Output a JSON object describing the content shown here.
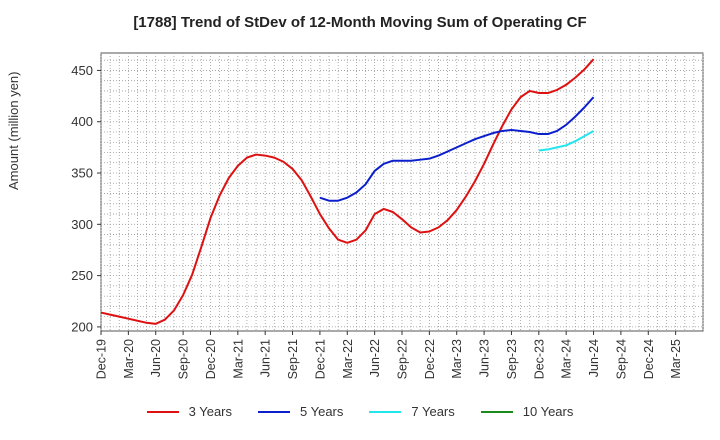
{
  "chart_data": {
    "type": "line",
    "title": "[1788]  Trend of StDev of 12-Month Moving Sum of Operating CF",
    "xlabel": "",
    "ylabel": "Amount (million yen)",
    "ylim": [
      196,
      467
    ],
    "yticks": [
      200,
      250,
      300,
      350,
      400,
      450
    ],
    "categories": [
      "Dec-19",
      "Mar-20",
      "Jun-20",
      "Sep-20",
      "Dec-20",
      "Mar-21",
      "Jun-21",
      "Sep-21",
      "Dec-21",
      "Mar-22",
      "Jun-22",
      "Sep-22",
      "Dec-22",
      "Mar-23",
      "Jun-23",
      "Sep-23",
      "Dec-23",
      "Mar-24",
      "Jun-24",
      "Sep-24",
      "Dec-24",
      "Mar-25"
    ],
    "grid": true,
    "legend_position": "bottom",
    "series": [
      {
        "name": "3 Years",
        "color": "#dd1111",
        "points": [
          [
            "Dec-19",
            214
          ],
          [
            "Jan-20",
            212
          ],
          [
            "Feb-20",
            210
          ],
          [
            "Mar-20",
            208
          ],
          [
            "Apr-20",
            206
          ],
          [
            "May-20",
            204
          ],
          [
            "Jun-20",
            203
          ],
          [
            "Jul-20",
            207
          ],
          [
            "Aug-20",
            216
          ],
          [
            "Sep-20",
            231
          ],
          [
            "Oct-20",
            251
          ],
          [
            "Nov-20",
            278
          ],
          [
            "Dec-20",
            306
          ],
          [
            "Jan-21",
            328
          ],
          [
            "Feb-21",
            345
          ],
          [
            "Mar-21",
            357
          ],
          [
            "Apr-21",
            365
          ],
          [
            "May-21",
            368
          ],
          [
            "Jun-21",
            367
          ],
          [
            "Jul-21",
            365
          ],
          [
            "Aug-21",
            361
          ],
          [
            "Sep-21",
            354
          ],
          [
            "Oct-21",
            343
          ],
          [
            "Nov-21",
            327
          ],
          [
            "Dec-21",
            310
          ],
          [
            "Jan-22",
            296
          ],
          [
            "Feb-22",
            285
          ],
          [
            "Mar-22",
            282
          ],
          [
            "Apr-22",
            285
          ],
          [
            "May-22",
            294
          ],
          [
            "Jun-22",
            310
          ],
          [
            "Jul-22",
            315
          ],
          [
            "Aug-22",
            312
          ],
          [
            "Sep-22",
            305
          ],
          [
            "Oct-22",
            297
          ],
          [
            "Nov-22",
            292
          ],
          [
            "Dec-22",
            293
          ],
          [
            "Jan-23",
            297
          ],
          [
            "Feb-23",
            304
          ],
          [
            "Mar-23",
            314
          ],
          [
            "Apr-23",
            327
          ],
          [
            "May-23",
            342
          ],
          [
            "Jun-23",
            359
          ],
          [
            "Jul-23",
            378
          ],
          [
            "Aug-23",
            396
          ],
          [
            "Sep-23",
            412
          ],
          [
            "Oct-23",
            424
          ],
          [
            "Nov-23",
            430
          ],
          [
            "Dec-23",
            428
          ],
          [
            "Jan-24",
            428
          ],
          [
            "Feb-24",
            431
          ],
          [
            "Mar-24",
            436
          ],
          [
            "Apr-24",
            443
          ],
          [
            "May-24",
            451
          ],
          [
            "Jun-24",
            461
          ]
        ]
      },
      {
        "name": "5 Years",
        "color": "#0b1fcc",
        "points": [
          [
            "Dec-21",
            326
          ],
          [
            "Jan-22",
            323
          ],
          [
            "Feb-22",
            323
          ],
          [
            "Mar-22",
            326
          ],
          [
            "Apr-22",
            331
          ],
          [
            "May-22",
            339
          ],
          [
            "Jun-22",
            352
          ],
          [
            "Jul-22",
            359
          ],
          [
            "Aug-22",
            362
          ],
          [
            "Sep-22",
            362
          ],
          [
            "Oct-22",
            362
          ],
          [
            "Nov-22",
            363
          ],
          [
            "Dec-22",
            364
          ],
          [
            "Jan-23",
            367
          ],
          [
            "Feb-23",
            371
          ],
          [
            "Mar-23",
            375
          ],
          [
            "Apr-23",
            379
          ],
          [
            "May-23",
            383
          ],
          [
            "Jun-23",
            386
          ],
          [
            "Jul-23",
            389
          ],
          [
            "Aug-23",
            391
          ],
          [
            "Sep-23",
            392
          ],
          [
            "Oct-23",
            391
          ],
          [
            "Nov-23",
            390
          ],
          [
            "Dec-23",
            388
          ],
          [
            "Jan-24",
            388
          ],
          [
            "Feb-24",
            391
          ],
          [
            "Mar-24",
            397
          ],
          [
            "Apr-24",
            405
          ],
          [
            "May-24",
            414
          ],
          [
            "Jun-24",
            424
          ]
        ]
      },
      {
        "name": "7 Years",
        "color": "#22e5ee",
        "points": [
          [
            "Dec-23",
            372
          ],
          [
            "Jan-24",
            373
          ],
          [
            "Feb-24",
            375
          ],
          [
            "Mar-24",
            377
          ],
          [
            "Apr-24",
            381
          ],
          [
            "May-24",
            386
          ],
          [
            "Jun-24",
            391
          ]
        ]
      },
      {
        "name": "10 Years",
        "color": "#1a8a1a",
        "points": []
      }
    ]
  }
}
